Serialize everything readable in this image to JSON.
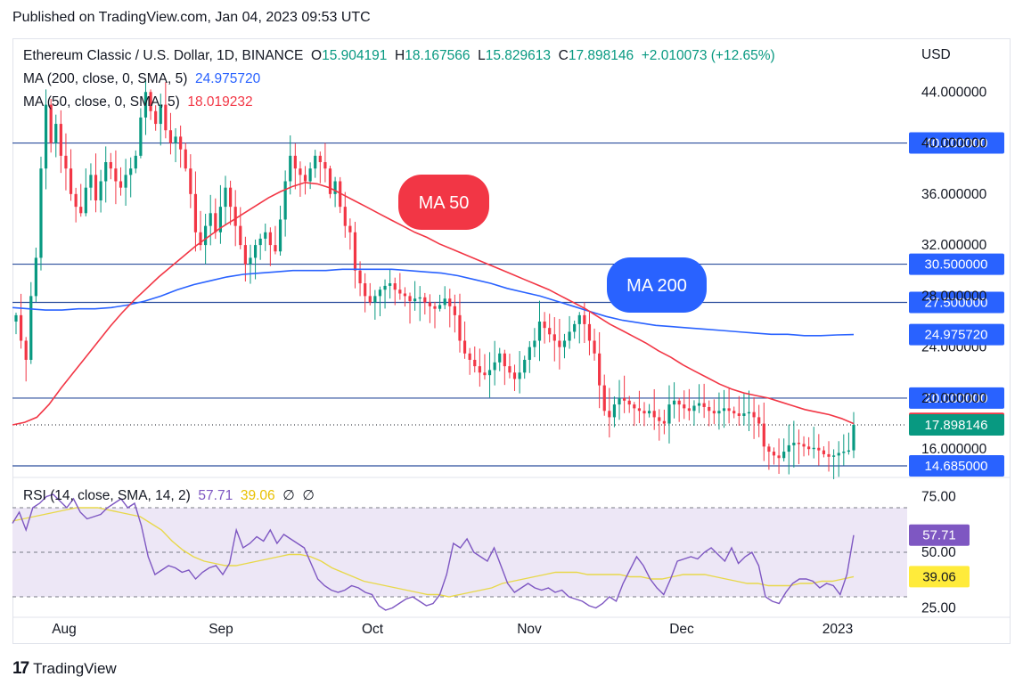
{
  "header": {
    "published": "Published on TradingView.com, Jan 04, 2023 09:53 UTC"
  },
  "legend": {
    "symbol": "Ethereum Classic / U.S. Dollar, 1D, BINANCE",
    "o_label": "O",
    "o": "15.904191",
    "h_label": "H",
    "h": "18.167566",
    "l_label": "L",
    "l": "15.829613",
    "c_label": "C",
    "c": "17.898146",
    "change": "+2.010073 (+12.65%)",
    "ma200_label": "MA (200, close, 0, SMA, 5)",
    "ma200_value": "24.975720",
    "ma50_label": "MA (50, close, 0, SMA, 5)",
    "ma50_value": "18.019232",
    "rsi_label": "RSI (14, close, SMA, 14, 2)",
    "rsi_value": "57.71",
    "rsi_ma_value": "39.06",
    "rsi_extra1": "∅",
    "rsi_extra2": "∅"
  },
  "footer": {
    "brand": "TradingView",
    "logo_text": "17"
  },
  "colors": {
    "up": "#089981",
    "down": "#f23645",
    "ma50": "#f23645",
    "ma200": "#2962ff",
    "hline": "#2a4d9c",
    "rsi": "#7e57c2",
    "rsi_ma": "#e8d84a",
    "rsi_bg": "#ede7f6"
  },
  "chart_data": {
    "type": "candlestick",
    "title": "Ethereum Classic / U.S. Dollar, 1D, BINANCE",
    "currency": "USD",
    "x_labels": [
      "Aug",
      "Sep",
      "Oct",
      "Nov",
      "Dec",
      "2023"
    ],
    "y_ticks": [
      "44.000000",
      "40.000000",
      "36.000000",
      "32.000000",
      "28.000000",
      "24.000000",
      "20.000000",
      "16.000000"
    ],
    "ylim": [
      13.5,
      48.0
    ],
    "horizontal_levels": [
      {
        "value": 40.0,
        "label": "40.000000"
      },
      {
        "value": 30.5,
        "label": "30.500000"
      },
      {
        "value": 27.5,
        "label": "27.500000"
      },
      {
        "value": 20.0,
        "label": "20.000000"
      },
      {
        "value": 14.685,
        "label": "14.685000"
      }
    ],
    "price_labels": [
      {
        "value": 24.97572,
        "label": "24.975720",
        "color": "#2962ff"
      },
      {
        "value": 18.019232,
        "label": "18.019232",
        "color": "#f23645"
      },
      {
        "value": 17.898146,
        "label": "17.898146",
        "color": "#089981"
      }
    ],
    "annotations": [
      {
        "text": "MA 50",
        "color": "#f23645"
      },
      {
        "text": "MA 200",
        "color": "#2962ff"
      }
    ],
    "close_series": [
      26.5,
      24.5,
      23.0,
      28.0,
      31.0,
      38.0,
      43.0,
      40.0,
      41.5,
      39.0,
      38.0,
      36.0,
      35.0,
      34.5,
      36.5,
      37.5,
      35.5,
      37.0,
      38.5,
      38.0,
      37.0,
      36.5,
      37.5,
      38.0,
      39.0,
      42.0,
      44.0,
      42.5,
      41.5,
      43.0,
      41.0,
      40.0,
      40.5,
      39.5,
      38.0,
      36.0,
      33.0,
      32.0,
      33.5,
      34.5,
      33.0,
      35.0,
      36.5,
      35.0,
      33.5,
      32.0,
      30.5,
      31.0,
      32.0,
      32.5,
      33.0,
      32.0,
      31.5,
      34.0,
      37.0,
      39.0,
      38.0,
      37.5,
      37.0,
      38.0,
      39.0,
      38.5,
      38.0,
      36.0,
      37.0,
      35.0,
      33.5,
      33.0,
      30.0,
      29.0,
      28.0,
      27.5,
      28.0,
      28.5,
      28.8,
      29.0,
      28.5,
      28.2,
      28.0,
      27.6,
      27.8,
      27.9,
      27.5,
      27.2,
      27.0,
      27.3,
      27.8,
      27.2,
      26.5,
      24.5,
      23.5,
      23.0,
      22.5,
      22.0,
      21.8,
      22.2,
      22.8,
      23.5,
      22.5,
      22.0,
      21.5,
      22.0,
      23.0,
      24.0,
      24.5,
      26.0,
      25.5,
      25.0,
      24.5,
      24.0,
      24.5,
      25.2,
      25.8,
      26.5,
      25.8,
      24.5,
      23.5,
      21.0,
      19.0,
      18.5,
      19.5,
      20.0,
      19.8,
      19.5,
      19.2,
      19.0,
      18.8,
      19.0,
      18.5,
      18.2,
      18.0,
      19.5,
      19.8,
      19.5,
      19.2,
      19.0,
      19.4,
      19.6,
      19.3,
      19.0,
      18.8,
      19.0,
      19.2,
      19.0,
      18.8,
      18.6,
      18.8,
      18.9,
      18.5,
      18.0,
      16.2,
      15.8,
      15.5,
      15.3,
      15.8,
      16.3,
      16.5,
      16.4,
      16.2,
      16.0,
      16.1,
      15.9,
      15.6,
      15.4,
      15.5,
      15.7,
      15.8,
      15.9,
      17.9
    ],
    "ma50_series": [
      17.9,
      18.1,
      18.5,
      19.5,
      20.8,
      22.0,
      23.2,
      24.4,
      25.6,
      26.7,
      27.7,
      28.6,
      29.5,
      30.3,
      31.1,
      31.9,
      32.6,
      33.3,
      33.9,
      34.5,
      35.1,
      35.7,
      36.2,
      36.6,
      36.9,
      36.8,
      36.5,
      36.0,
      35.5,
      35.0,
      34.5,
      34.0,
      33.5,
      33.0,
      32.6,
      32.1,
      31.7,
      31.3,
      30.9,
      30.5,
      30.1,
      29.7,
      29.3,
      28.9,
      28.5,
      28.0,
      27.5,
      27.0,
      26.4,
      25.8,
      25.3,
      24.8,
      24.3,
      23.7,
      23.2,
      22.6,
      22.1,
      21.6,
      21.1,
      20.7,
      20.4,
      20.2,
      20.0,
      19.7,
      19.4,
      19.1,
      18.9,
      18.7,
      18.4,
      18.0
    ],
    "ma200_series": [
      27.1,
      27.0,
      26.9,
      26.9,
      27.0,
      27.0,
      27.1,
      27.3,
      27.6,
      28.0,
      28.5,
      28.9,
      29.2,
      29.5,
      29.7,
      29.8,
      29.9,
      30.0,
      30.0,
      30.0,
      30.1,
      30.1,
      30.1,
      30.1,
      30.0,
      29.9,
      29.8,
      29.6,
      29.3,
      29.0,
      28.6,
      28.3,
      28.0,
      27.6,
      27.2,
      26.8,
      26.4,
      26.1,
      25.9,
      25.7,
      25.6,
      25.5,
      25.4,
      25.3,
      25.2,
      25.1,
      25.0,
      25.0,
      24.9,
      24.9,
      24.95,
      24.98
    ],
    "rsi": {
      "ylim": [
        20,
        80
      ],
      "y_ticks": [
        "75.00",
        "50.00",
        "25.00"
      ],
      "levels": [
        70,
        50,
        30
      ],
      "rsi_series": [
        63,
        68,
        60,
        70,
        72,
        75,
        76,
        73,
        70,
        74,
        68,
        65,
        66,
        67,
        70,
        72,
        74,
        70,
        72,
        62,
        48,
        40,
        42,
        44,
        43,
        41,
        42,
        38,
        41,
        43,
        44,
        40,
        45,
        60,
        52,
        54,
        57,
        55,
        60,
        54,
        58,
        56,
        54,
        52,
        45,
        38,
        35,
        33,
        32,
        33,
        35,
        34,
        32,
        31,
        26,
        24,
        25,
        27,
        29,
        30,
        28,
        26,
        27,
        31,
        40,
        54,
        52,
        56,
        50,
        48,
        46,
        52,
        44,
        36,
        32,
        34,
        36,
        34,
        33,
        34,
        32,
        33,
        30,
        29,
        28,
        26,
        25,
        27,
        30,
        28,
        36,
        42,
        48,
        44,
        38,
        34,
        31,
        38,
        46,
        47,
        48,
        47,
        50,
        52,
        49,
        46,
        52,
        45,
        48,
        50,
        44,
        30,
        28,
        27,
        32,
        36,
        38,
        38,
        37,
        34,
        36,
        35,
        31,
        40,
        57.71
      ],
      "rsi_ma_series": [
        64,
        65,
        66,
        67,
        68,
        69,
        70,
        70,
        70,
        69,
        68,
        67,
        66,
        63,
        60,
        55,
        51,
        48,
        46,
        45,
        44,
        44,
        45,
        46,
        47,
        48,
        49,
        49,
        48,
        46,
        43,
        41,
        39,
        37,
        36,
        35,
        34,
        33,
        32,
        31,
        31,
        30,
        31,
        32,
        33,
        34,
        36,
        37,
        38,
        39,
        40,
        41,
        41,
        41,
        40,
        40,
        40,
        40,
        39,
        39,
        38,
        38,
        39,
        40,
        40,
        40,
        39,
        38,
        37,
        36,
        36,
        35,
        35,
        35,
        36,
        36,
        37,
        37,
        38,
        39.06
      ]
    }
  }
}
